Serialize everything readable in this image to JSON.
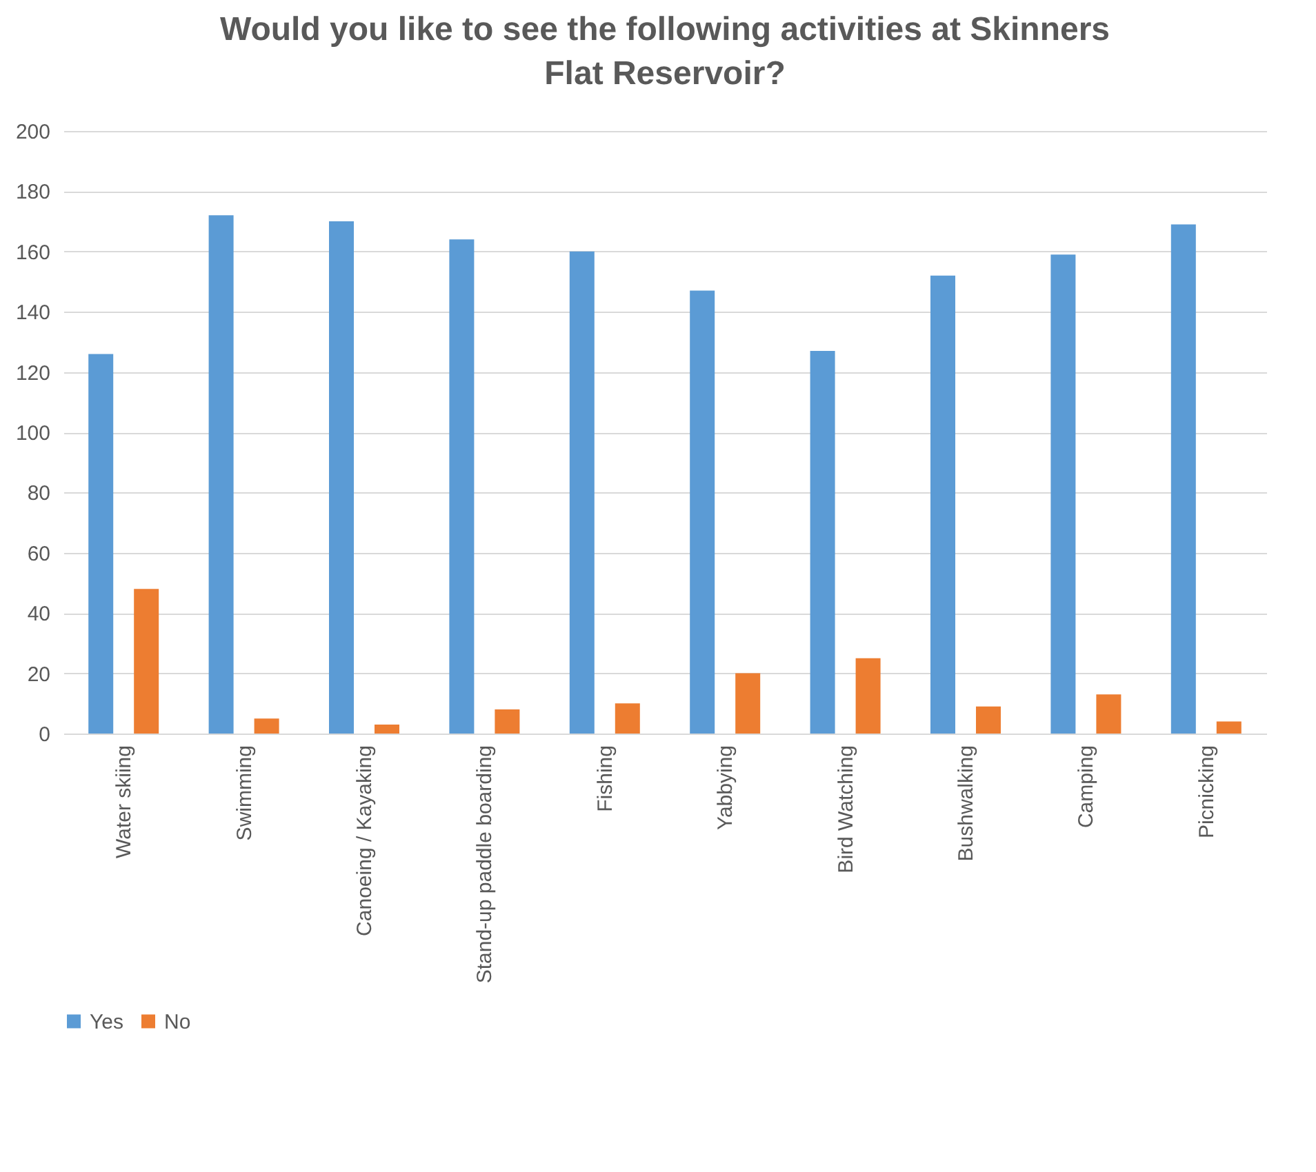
{
  "chart_data": {
    "type": "bar",
    "title": "Would you like to see the following activities at Skinners Flat Reservoir?",
    "categories": [
      "Water skiing",
      "Swimming",
      "Canoeing / Kayaking",
      "Stand-up paddle boarding",
      "Fishing",
      "Yabbying",
      "Bird Watching",
      "Bushwalking",
      "Camping",
      "Picnicking"
    ],
    "series": [
      {
        "name": "Yes",
        "color": "#5b9bd5",
        "values": [
          126,
          172,
          170,
          164,
          160,
          147,
          127,
          152,
          159,
          169
        ]
      },
      {
        "name": "No",
        "color": "#ed7d31",
        "values": [
          48,
          5,
          3,
          8,
          10,
          20,
          25,
          9,
          13,
          4
        ]
      }
    ],
    "ylim": [
      0,
      200
    ],
    "yticks": [
      0,
      20,
      40,
      60,
      80,
      100,
      120,
      140,
      160,
      180,
      200
    ],
    "grid": "y",
    "legend": "bottom"
  }
}
